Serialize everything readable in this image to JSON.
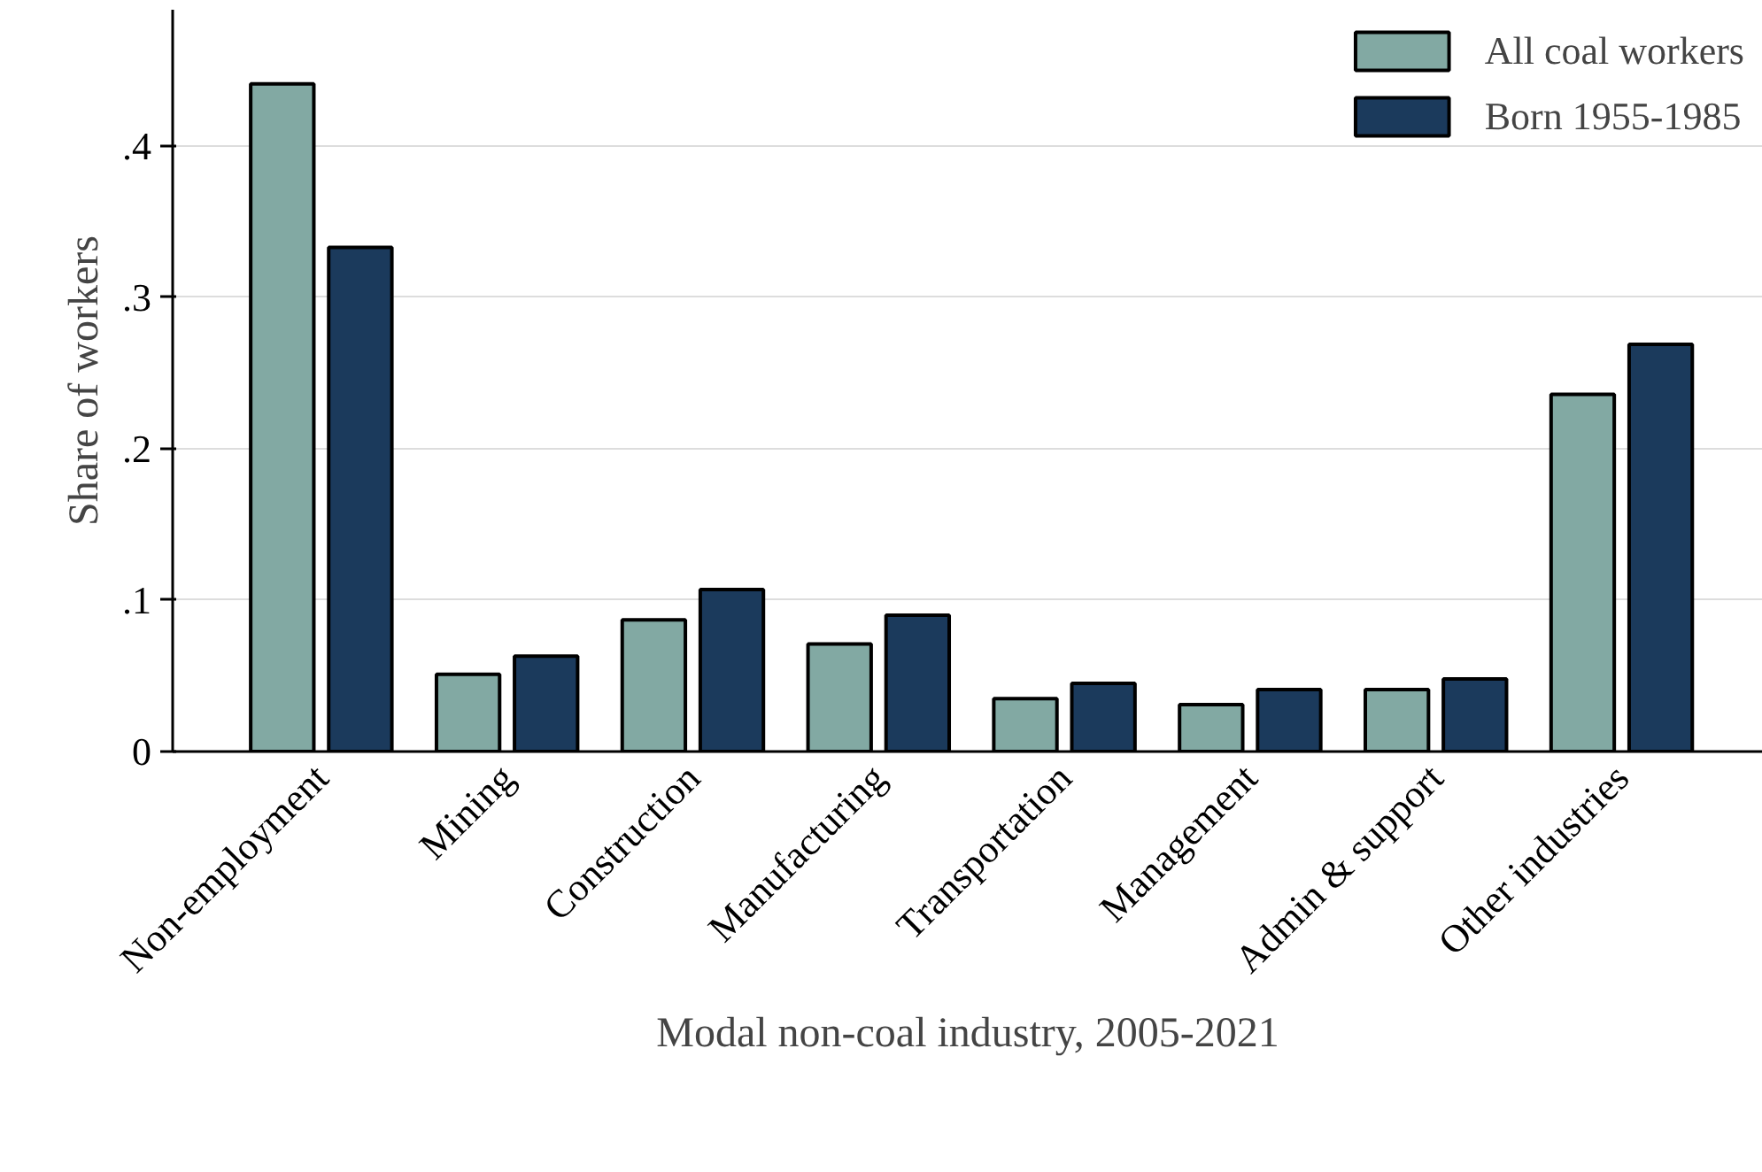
{
  "chart_data": {
    "type": "bar",
    "xlabel": "Modal non-coal industry, 2005-2021",
    "ylabel": "Share of workers",
    "categories": [
      "Non-employment",
      "Mining",
      "Construction",
      "Manufacturing",
      "Transportation",
      "Management",
      "Admin & support",
      "Other industries"
    ],
    "series": [
      {
        "name": "All coal workers",
        "color": "#82a9a3",
        "values": [
          0.441,
          0.051,
          0.087,
          0.071,
          0.035,
          0.031,
          0.041,
          0.236
        ]
      },
      {
        "name": "Born 1955-1985",
        "color": "#1b3a5c",
        "values": [
          0.333,
          0.063,
          0.107,
          0.09,
          0.045,
          0.041,
          0.048,
          0.269
        ]
      }
    ],
    "ylim": [
      0,
      0.49
    ],
    "yticks": [
      {
        "value": 0,
        "label": "0"
      },
      {
        "value": 0.1,
        "label": ".1"
      },
      {
        "value": 0.2,
        "label": ".2"
      },
      {
        "value": 0.3,
        "label": ".3"
      },
      {
        "value": 0.4,
        "label": ".4"
      }
    ],
    "grid": "y",
    "legend": "top right"
  }
}
